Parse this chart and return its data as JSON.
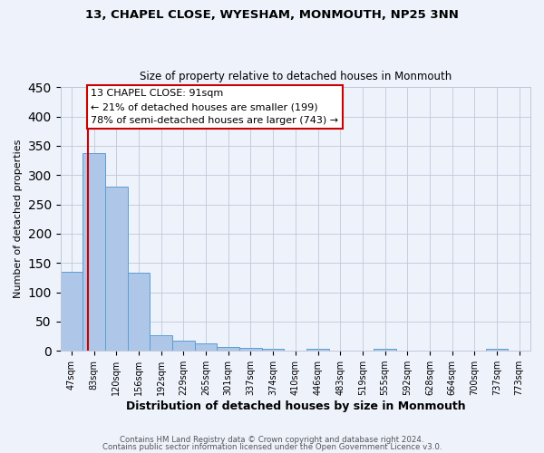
{
  "title1": "13, CHAPEL CLOSE, WYESHAM, MONMOUTH, NP25 3NN",
  "title2": "Size of property relative to detached houses in Monmouth",
  "xlabel": "Distribution of detached houses by size in Monmouth",
  "ylabel": "Number of detached properties",
  "footer1": "Contains HM Land Registry data © Crown copyright and database right 2024.",
  "footer2": "Contains public sector information licensed under the Open Government Licence v3.0.",
  "bar_labels": [
    "47sqm",
    "83sqm",
    "120sqm",
    "156sqm",
    "192sqm",
    "229sqm",
    "265sqm",
    "301sqm",
    "337sqm",
    "374sqm",
    "410sqm",
    "446sqm",
    "483sqm",
    "519sqm",
    "555sqm",
    "592sqm",
    "628sqm",
    "664sqm",
    "700sqm",
    "737sqm",
    "773sqm"
  ],
  "bar_values": [
    135,
    337,
    281,
    133,
    27,
    18,
    13,
    7,
    5,
    3,
    0,
    3,
    0,
    0,
    3,
    0,
    0,
    0,
    0,
    3,
    0
  ],
  "bar_color": "#aec6e8",
  "bar_edge_color": "#5a9fd4",
  "property_line_x": 1.22,
  "property_line_color": "#cc0000",
  "ylim": [
    0,
    450
  ],
  "yticks": [
    0,
    50,
    100,
    150,
    200,
    250,
    300,
    350,
    400,
    450
  ],
  "annotation_title": "13 CHAPEL CLOSE: 91sqm",
  "annotation_line1": "← 21% of detached houses are smaller (199)",
  "annotation_line2": "78% of semi-detached houses are larger (743) →",
  "annotation_box_color": "#ffffff",
  "annotation_box_edge": "#cc0000",
  "bg_color": "#eef2fb"
}
